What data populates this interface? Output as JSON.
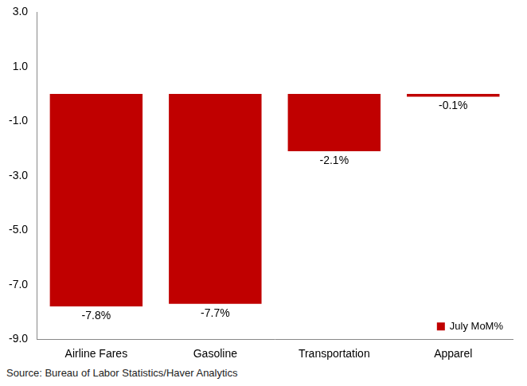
{
  "chart_data": {
    "type": "bar",
    "categories": [
      "Airline Fares",
      "Gasoline",
      "Transportation",
      "Apparel"
    ],
    "series": [
      {
        "name": "July MoM%",
        "color": "#c00000",
        "values": [
          -7.8,
          -7.7,
          -2.1,
          -0.1
        ],
        "value_labels": [
          "-7.8%",
          "-7.7%",
          "-2.1%",
          "-0.1%"
        ]
      }
    ],
    "ylim": [
      -9,
      3
    ],
    "yticks": [
      {
        "value": -9,
        "label": "-9.0"
      },
      {
        "value": -7,
        "label": "-7.0"
      },
      {
        "value": -5,
        "label": "-5.0"
      },
      {
        "value": -3,
        "label": "-3.0"
      },
      {
        "value": -1,
        "label": "-1.0"
      },
      {
        "value": 1,
        "label": "1.0"
      },
      {
        "value": 3,
        "label": "3.0"
      }
    ],
    "grid": false,
    "legend": "lower right",
    "data_labels": true,
    "annotations": [
      "Source: Bureau of Labor Statistics/Haver Analytics"
    ]
  }
}
